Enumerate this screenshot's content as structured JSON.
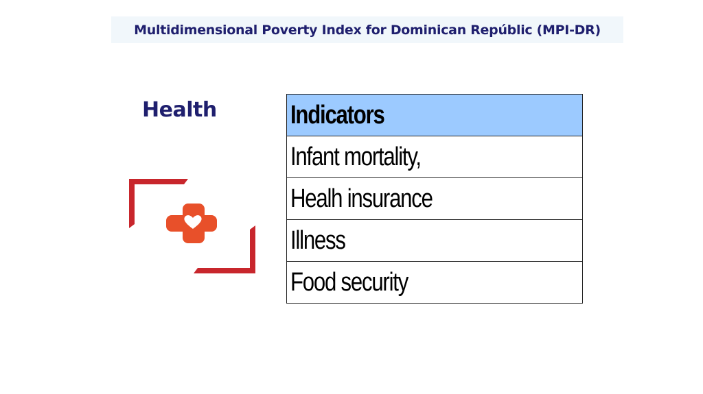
{
  "title": "Multidimensional Poverty Index for Dominican Repúblic (MPI-DR)",
  "section": {
    "label": "Health",
    "icon": "medical-cross-heart-icon"
  },
  "table": {
    "header": "Indicators",
    "rows": [
      "Infant mortality,",
      "Healh insurance",
      "Illness",
      "Food security"
    ]
  },
  "colors": {
    "title_text": "#1f1f6e",
    "title_background": "#f1f7fb",
    "table_header_background": "#9ccaff",
    "icon_frame": "#c8262c",
    "icon_cross": "#e8502a"
  }
}
